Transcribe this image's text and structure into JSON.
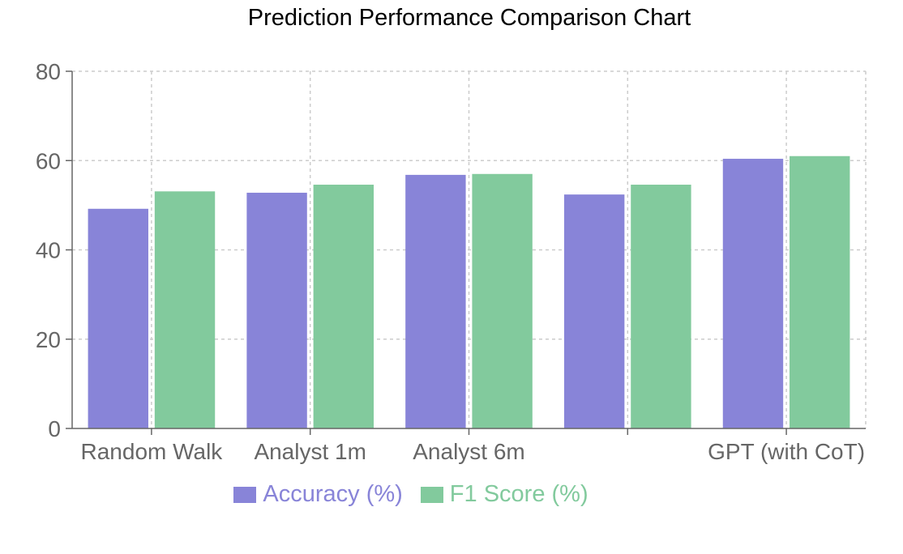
{
  "chart_data": {
    "type": "bar",
    "title": "Prediction Performance Comparison Chart",
    "categories": [
      "Random Walk",
      "Analyst 1m",
      "Analyst 6m",
      "",
      "GPT (with CoT)"
    ],
    "series": [
      {
        "name": "Accuracy (%)",
        "values": [
          49.2,
          52.8,
          56.8,
          52.4,
          60.4
        ],
        "color": "#8884d8"
      },
      {
        "name": "F1 Score (%)",
        "values": [
          53.1,
          54.6,
          57.0,
          54.6,
          61.0
        ],
        "color": "#82ca9d"
      }
    ],
    "ylim": [
      0,
      80
    ],
    "yticks": [
      0,
      20,
      40,
      60,
      80
    ],
    "grid": true,
    "legend": "bottom"
  }
}
